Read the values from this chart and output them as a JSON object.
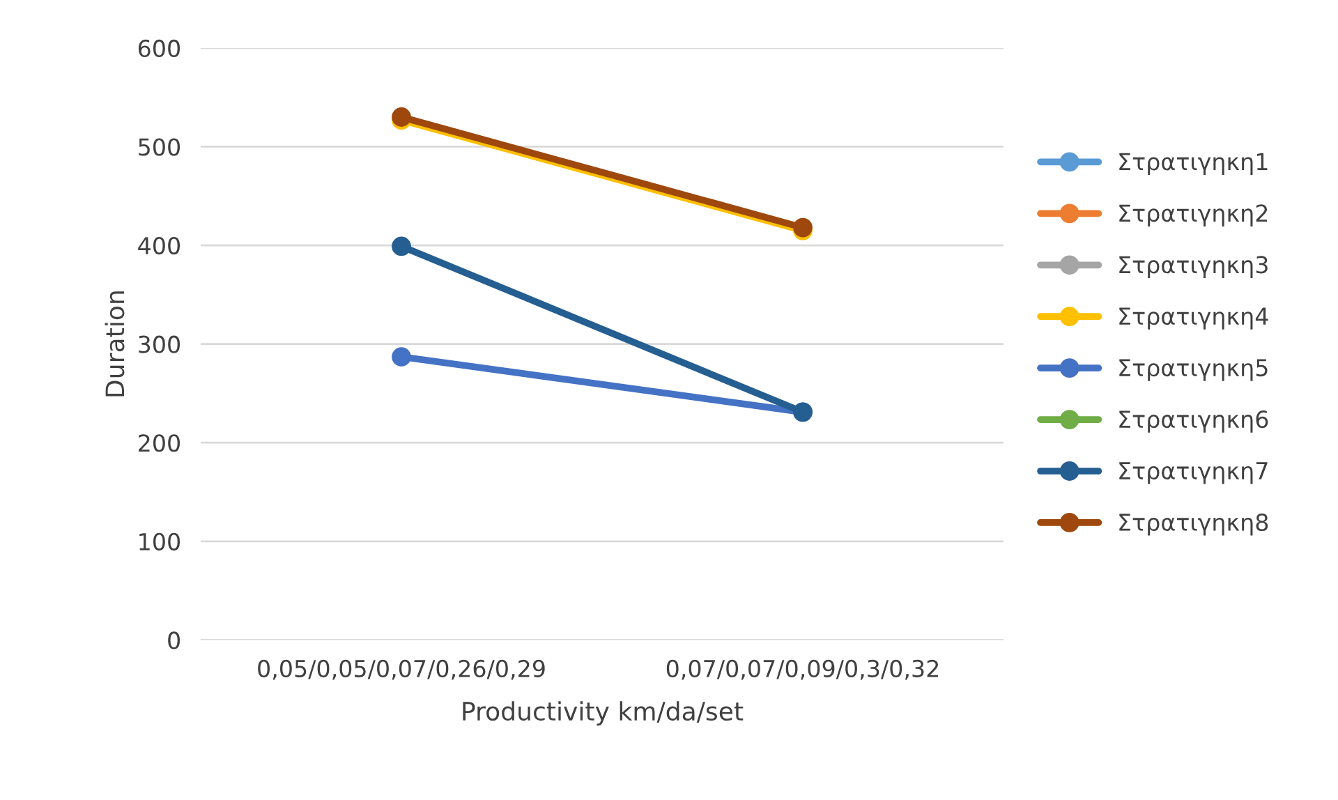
{
  "chart_data": {
    "type": "line",
    "xlabel": "Productivity km/da/set",
    "ylabel": "Duration",
    "categories": [
      "0,05/0,05/0,07/0,26/0,29",
      "0,07/0,07/0,09/0,3/0,32"
    ],
    "series": [
      {
        "name": "Στρατιγηκη1",
        "color": "#5b9bd5",
        "values": [
          null,
          null
        ]
      },
      {
        "name": "Στρατιγηκη2",
        "color": "#ed7d31",
        "values": [
          null,
          null
        ]
      },
      {
        "name": "Στρατιγηκη3",
        "color": "#a5a5a5",
        "values": [
          null,
          null
        ]
      },
      {
        "name": "Στρατιγηκη4",
        "color": "#ffc000",
        "values": [
          527,
          415
        ]
      },
      {
        "name": "Στρατιγηκη5",
        "color": "#4472c4",
        "values": [
          287,
          231
        ]
      },
      {
        "name": "Στρατιγηκη6",
        "color": "#70ad47",
        "values": [
          null,
          null
        ]
      },
      {
        "name": "Στρατιγηκη7",
        "color": "#255e91",
        "values": [
          399,
          231
        ]
      },
      {
        "name": "Στρατιγηκη8",
        "color": "#9e480e",
        "values": [
          530,
          418
        ]
      }
    ],
    "ylim": [
      0,
      600
    ],
    "yticks": [
      0,
      100,
      200,
      300,
      400,
      500,
      600
    ],
    "grid": "y",
    "legend": "right",
    "marker": "circle",
    "line_style": "solid"
  }
}
